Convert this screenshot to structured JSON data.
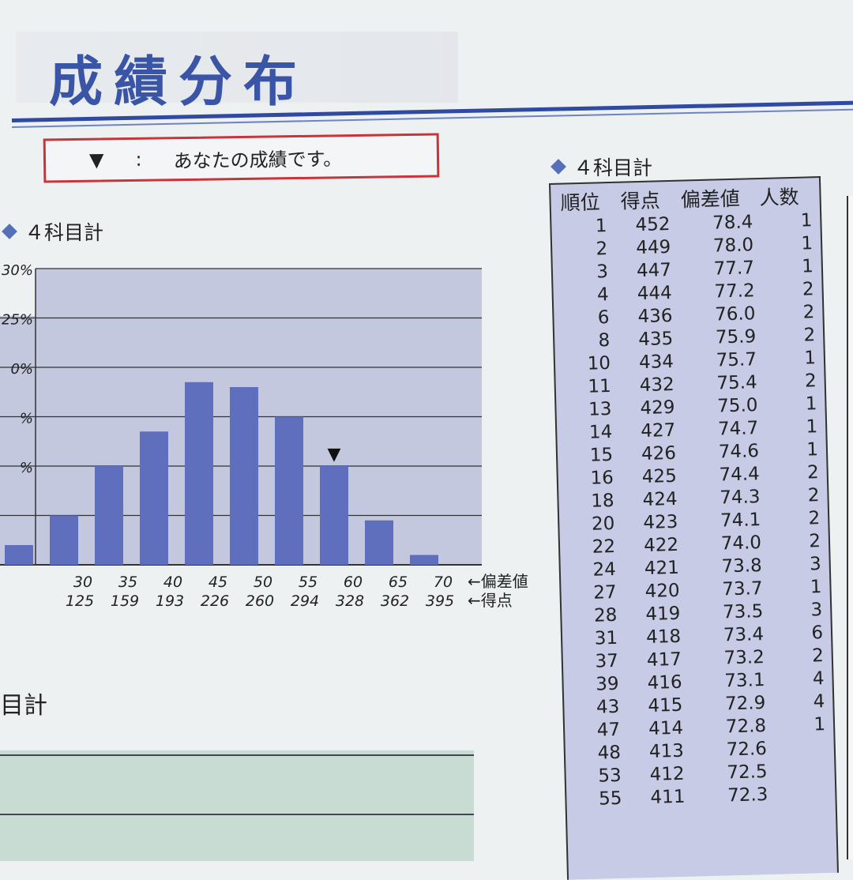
{
  "header": {
    "title": "成績分布",
    "legend_marker": "▼",
    "legend_colon": ":",
    "legend_text": "あなたの成績です。"
  },
  "chart_section": {
    "title": "４科目計"
  },
  "table_section": {
    "title": "４科目計"
  },
  "lower_section": {
    "title": "目計"
  },
  "colors": {
    "accent": "#3a55a6",
    "bar": "#5f6fbd",
    "plot_bg": "#c3c8de",
    "legend_border": "#c9343b",
    "table_bg": "#c7cbe6"
  },
  "chart_data": {
    "type": "bar",
    "y_ticks": [
      "30%",
      "25%",
      "0%",
      "%",
      "%",
      ""
    ],
    "ylim": [
      0,
      30
    ],
    "grid": true,
    "x_labels_deviation": [
      "",
      "30",
      "35",
      "40",
      "45",
      "50",
      "55",
      "60",
      "65",
      "70"
    ],
    "x_labels_score": [
      "",
      "125",
      "159",
      "193",
      "226",
      "260",
      "294",
      "328",
      "362",
      "395"
    ],
    "x_axis_note_deviation": "←偏差値",
    "x_axis_note_score": "←得点",
    "values": [
      2,
      5,
      10,
      13.5,
      18.5,
      18,
      15,
      10,
      4.5,
      1
    ],
    "marker_index": 7,
    "marker": "▼"
  },
  "table": {
    "headers": [
      "順位",
      "得点",
      "偏差値",
      "人数"
    ],
    "rows": [
      [
        "1",
        "452",
        "78.4",
        "1"
      ],
      [
        "2",
        "449",
        "78.0",
        "1"
      ],
      [
        "3",
        "447",
        "77.7",
        "1"
      ],
      [
        "4",
        "444",
        "77.2",
        "2"
      ],
      [
        "6",
        "436",
        "76.0",
        "2"
      ],
      [
        "8",
        "435",
        "75.9",
        "2"
      ],
      [
        "10",
        "434",
        "75.7",
        "1"
      ],
      [
        "11",
        "432",
        "75.4",
        "2"
      ],
      [
        "13",
        "429",
        "75.0",
        "1"
      ],
      [
        "14",
        "427",
        "74.7",
        "1"
      ],
      [
        "15",
        "426",
        "74.6",
        "1"
      ],
      [
        "16",
        "425",
        "74.4",
        "2"
      ],
      [
        "18",
        "424",
        "74.3",
        "2"
      ],
      [
        "20",
        "423",
        "74.1",
        "2"
      ],
      [
        "22",
        "422",
        "74.0",
        "2"
      ],
      [
        "24",
        "421",
        "73.8",
        "3"
      ],
      [
        "27",
        "420",
        "73.7",
        "1"
      ],
      [
        "28",
        "419",
        "73.5",
        "3"
      ],
      [
        "31",
        "418",
        "73.4",
        "6"
      ],
      [
        "37",
        "417",
        "73.2",
        "2"
      ],
      [
        "39",
        "416",
        "73.1",
        "4"
      ],
      [
        "43",
        "415",
        "72.9",
        "4"
      ],
      [
        "47",
        "414",
        "72.8",
        "1"
      ],
      [
        "48",
        "413",
        "72.6",
        ""
      ],
      [
        "53",
        "412",
        "72.5",
        ""
      ],
      [
        "55",
        "411",
        "72.3",
        ""
      ]
    ]
  }
}
